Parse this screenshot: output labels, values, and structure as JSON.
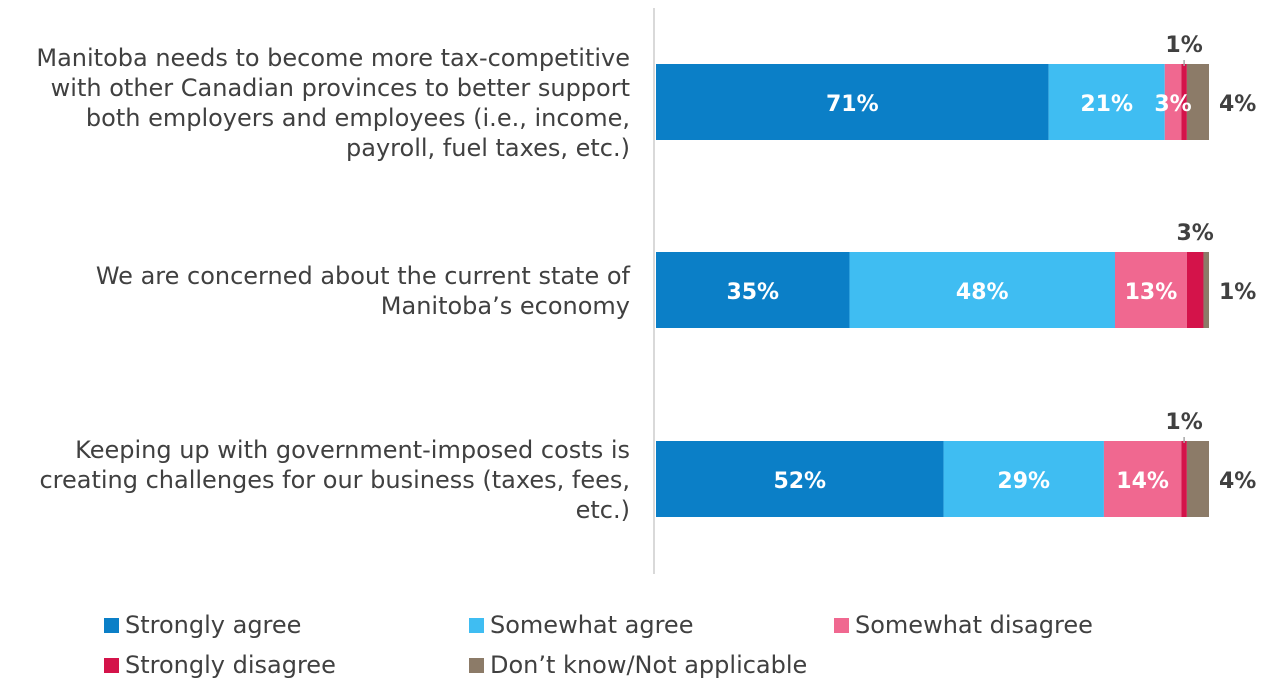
{
  "chart_data": {
    "type": "bar",
    "orientation": "horizontal",
    "stacked": true,
    "categories": [
      "Manitoba needs to become more tax-competitive with other Canadian provinces to better support both employers and employees (i.e., income, payroll, fuel taxes, etc.)",
      "We are concerned about the current state of Manitoba’s economy",
      "Keeping up with government-imposed costs is creating challenges for our business (taxes, fees, etc.)"
    ],
    "category_lines": [
      [
        "Manitoba needs to become more tax-competitive",
        "with other Canadian provinces to better support",
        "both employers and employees (i.e., income,",
        "payroll, fuel taxes, etc.)"
      ],
      [
        "We are concerned about the current state of",
        "Manitoba’s economy"
      ],
      [
        "Keeping up with government-imposed costs is",
        "creating challenges for our business (taxes, fees,",
        "etc.)"
      ]
    ],
    "series": [
      {
        "name": "Strongly agree",
        "color": "#0b7fc7",
        "values": [
          71,
          35,
          52
        ],
        "labels": [
          "71%",
          "35%",
          "52%"
        ]
      },
      {
        "name": "Somewhat agree",
        "color": "#3fbdf2",
        "values": [
          21,
          48,
          29
        ],
        "labels": [
          "21%",
          "48%",
          "29%"
        ]
      },
      {
        "name": "Somewhat disagree",
        "color": "#f06890",
        "values": [
          3,
          13,
          14
        ],
        "labels": [
          "3%",
          "13%",
          "14%"
        ]
      },
      {
        "name": "Strongly disagree",
        "color": "#d4134a",
        "values": [
          1,
          3,
          1
        ],
        "labels": [
          "1%",
          "3%",
          "1%"
        ]
      },
      {
        "name": "Don’t know/Not applicable",
        "color": "#8c7b68",
        "values": [
          4,
          1,
          4
        ],
        "labels": [
          "4%",
          "1%",
          "4%"
        ]
      }
    ],
    "xlim": [
      0,
      100
    ],
    "grid": false,
    "legend_position": "bottom",
    "title": "",
    "xlabel": "",
    "ylabel": ""
  }
}
